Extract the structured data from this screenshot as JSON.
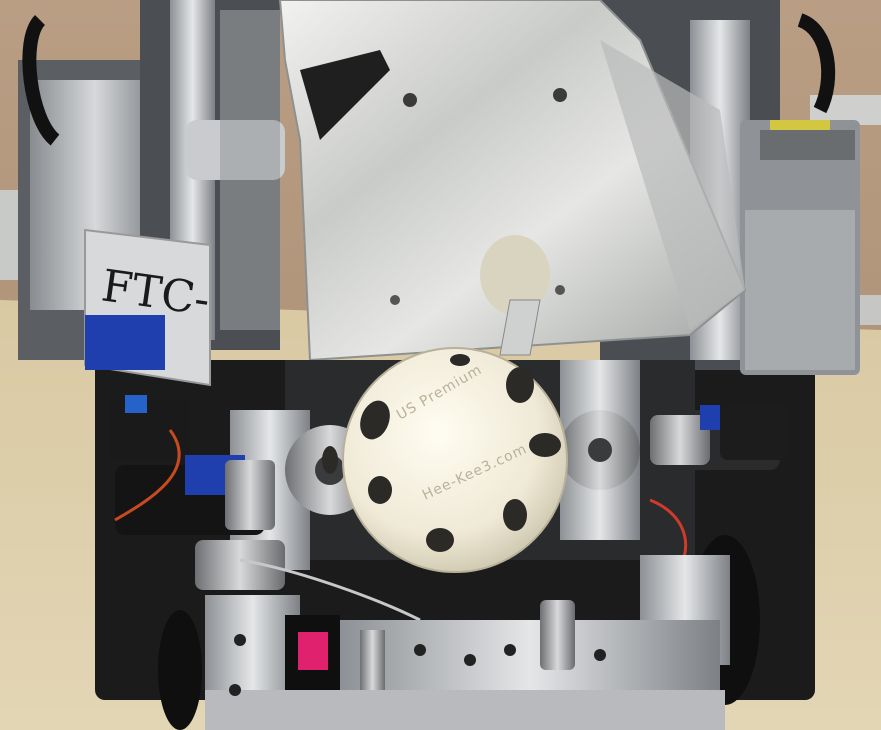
{
  "scene": {
    "subject": "robot"
  },
  "labels": {
    "sign": "FTC-",
    "ball_top": "US Premium",
    "ball_bottom": "Hee-Kee3.com"
  }
}
